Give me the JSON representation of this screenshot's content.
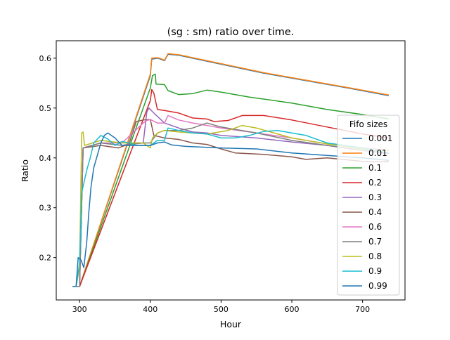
{
  "chart_data": {
    "type": "line",
    "title": "(sg : sm) ratio over time.",
    "xlabel": "Hour",
    "ylabel": "Ratio",
    "xlim": [
      267,
      760
    ],
    "ylim": [
      0.115,
      0.635
    ],
    "xticks": [
      300,
      400,
      500,
      600,
      700
    ],
    "yticks": [
      0.2,
      0.3,
      0.4,
      0.5,
      0.6
    ],
    "xtick_labels": [
      "300",
      "400",
      "500",
      "600",
      "700"
    ],
    "ytick_labels": [
      "0.2",
      "0.3",
      "0.4",
      "0.5",
      "0.6"
    ],
    "grid": false,
    "legend": {
      "title": "Fifo sizes",
      "placement": "center-right"
    },
    "series": [
      {
        "name": "0.001",
        "color": "#1f77b4",
        "points": [
          [
            290,
            0.142
          ],
          [
            300,
            0.142
          ],
          [
            400,
            0.565
          ],
          [
            402,
            0.598
          ],
          [
            410,
            0.6
          ],
          [
            415,
            0.598
          ],
          [
            420,
            0.595
          ],
          [
            425,
            0.608
          ],
          [
            440,
            0.606
          ],
          [
            500,
            0.588
          ],
          [
            560,
            0.57
          ],
          [
            620,
            0.555
          ],
          [
            680,
            0.54
          ],
          [
            737,
            0.525
          ]
        ]
      },
      {
        "name": "0.01",
        "color": "#ff7f0e",
        "points": [
          [
            290,
            0.142
          ],
          [
            300,
            0.142
          ],
          [
            400,
            0.568
          ],
          [
            402,
            0.6
          ],
          [
            410,
            0.601
          ],
          [
            415,
            0.599
          ],
          [
            420,
            0.596
          ],
          [
            425,
            0.609
          ],
          [
            440,
            0.607
          ],
          [
            500,
            0.589
          ],
          [
            560,
            0.571
          ],
          [
            620,
            0.556
          ],
          [
            680,
            0.541
          ],
          [
            737,
            0.526
          ]
        ]
      },
      {
        "name": "0.1",
        "color": "#2ca02c",
        "points": [
          [
            290,
            0.142
          ],
          [
            300,
            0.142
          ],
          [
            400,
            0.54
          ],
          [
            403,
            0.565
          ],
          [
            407,
            0.568
          ],
          [
            408,
            0.548
          ],
          [
            420,
            0.547
          ],
          [
            425,
            0.535
          ],
          [
            440,
            0.527
          ],
          [
            460,
            0.529
          ],
          [
            480,
            0.536
          ],
          [
            500,
            0.532
          ],
          [
            540,
            0.522
          ],
          [
            600,
            0.51
          ],
          [
            650,
            0.497
          ],
          [
            700,
            0.487
          ],
          [
            737,
            0.478
          ]
        ]
      },
      {
        "name": "0.2",
        "color": "#d62728",
        "points": [
          [
            290,
            0.142
          ],
          [
            300,
            0.142
          ],
          [
            400,
            0.515
          ],
          [
            402,
            0.537
          ],
          [
            405,
            0.53
          ],
          [
            410,
            0.497
          ],
          [
            420,
            0.495
          ],
          [
            440,
            0.49
          ],
          [
            460,
            0.48
          ],
          [
            480,
            0.478
          ],
          [
            490,
            0.473
          ],
          [
            510,
            0.475
          ],
          [
            530,
            0.485
          ],
          [
            560,
            0.485
          ],
          [
            600,
            0.476
          ],
          [
            650,
            0.462
          ],
          [
            700,
            0.448
          ],
          [
            737,
            0.44
          ]
        ]
      },
      {
        "name": "0.3",
        "color": "#9467bd",
        "points": [
          [
            290,
            0.142
          ],
          [
            300,
            0.142
          ],
          [
            305,
            0.42
          ],
          [
            330,
            0.43
          ],
          [
            360,
            0.425
          ],
          [
            380,
            0.43
          ],
          [
            390,
            0.43
          ],
          [
            395,
            0.492
          ],
          [
            398,
            0.5
          ],
          [
            405,
            0.49
          ],
          [
            420,
            0.47
          ],
          [
            440,
            0.46
          ],
          [
            460,
            0.452
          ],
          [
            480,
            0.45
          ],
          [
            500,
            0.445
          ],
          [
            550,
            0.44
          ],
          [
            600,
            0.432
          ],
          [
            650,
            0.425
          ],
          [
            700,
            0.415
          ],
          [
            737,
            0.408
          ]
        ]
      },
      {
        "name": "0.4",
        "color": "#8c564b",
        "points": [
          [
            290,
            0.142
          ],
          [
            300,
            0.142
          ],
          [
            305,
            0.42
          ],
          [
            330,
            0.425
          ],
          [
            355,
            0.42
          ],
          [
            370,
            0.428
          ],
          [
            380,
            0.473
          ],
          [
            390,
            0.476
          ],
          [
            400,
            0.477
          ],
          [
            405,
            0.445
          ],
          [
            420,
            0.44
          ],
          [
            440,
            0.437
          ],
          [
            460,
            0.43
          ],
          [
            480,
            0.427
          ],
          [
            500,
            0.418
          ],
          [
            520,
            0.41
          ],
          [
            560,
            0.407
          ],
          [
            600,
            0.402
          ],
          [
            620,
            0.397
          ],
          [
            650,
            0.4
          ],
          [
            700,
            0.393
          ],
          [
            737,
            0.392
          ]
        ]
      },
      {
        "name": "0.6",
        "color": "#e377c2",
        "points": [
          [
            290,
            0.142
          ],
          [
            300,
            0.142
          ],
          [
            305,
            0.42
          ],
          [
            330,
            0.43
          ],
          [
            360,
            0.43
          ],
          [
            390,
            0.47
          ],
          [
            395,
            0.475
          ],
          [
            400,
            0.477
          ],
          [
            410,
            0.47
          ],
          [
            420,
            0.47
          ],
          [
            425,
            0.485
          ],
          [
            440,
            0.476
          ],
          [
            460,
            0.47
          ],
          [
            480,
            0.465
          ],
          [
            500,
            0.46
          ],
          [
            550,
            0.45
          ],
          [
            600,
            0.44
          ],
          [
            650,
            0.428
          ],
          [
            700,
            0.42
          ],
          [
            737,
            0.415
          ]
        ]
      },
      {
        "name": "0.7",
        "color": "#7f7f7f",
        "points": [
          [
            290,
            0.142
          ],
          [
            300,
            0.142
          ],
          [
            305,
            0.42
          ],
          [
            330,
            0.43
          ],
          [
            360,
            0.425
          ],
          [
            390,
            0.43
          ],
          [
            400,
            0.43
          ],
          [
            410,
            0.45
          ],
          [
            420,
            0.455
          ],
          [
            440,
            0.455
          ],
          [
            460,
            0.46
          ],
          [
            480,
            0.47
          ],
          [
            500,
            0.462
          ],
          [
            550,
            0.45
          ],
          [
            600,
            0.435
          ],
          [
            650,
            0.425
          ],
          [
            700,
            0.415
          ],
          [
            737,
            0.41
          ]
        ]
      },
      {
        "name": "0.8",
        "color": "#bcbd22",
        "points": [
          [
            290,
            0.142
          ],
          [
            295,
            0.142
          ],
          [
            300,
            0.18
          ],
          [
            303,
            0.45
          ],
          [
            305,
            0.452
          ],
          [
            307,
            0.425
          ],
          [
            330,
            0.435
          ],
          [
            360,
            0.43
          ],
          [
            390,
            0.43
          ],
          [
            400,
            0.42
          ],
          [
            403,
            0.44
          ],
          [
            410,
            0.45
          ],
          [
            420,
            0.455
          ],
          [
            440,
            0.452
          ],
          [
            480,
            0.448
          ],
          [
            510,
            0.455
          ],
          [
            530,
            0.465
          ],
          [
            550,
            0.46
          ],
          [
            600,
            0.44
          ],
          [
            650,
            0.428
          ],
          [
            700,
            0.418
          ],
          [
            737,
            0.415
          ]
        ]
      },
      {
        "name": "0.9",
        "color": "#17becf",
        "points": [
          [
            290,
            0.142
          ],
          [
            295,
            0.142
          ],
          [
            300,
            0.19
          ],
          [
            303,
            0.33
          ],
          [
            310,
            0.375
          ],
          [
            315,
            0.4
          ],
          [
            320,
            0.43
          ],
          [
            330,
            0.445
          ],
          [
            340,
            0.438
          ],
          [
            350,
            0.425
          ],
          [
            360,
            0.433
          ],
          [
            370,
            0.43
          ],
          [
            380,
            0.425
          ],
          [
            400,
            0.425
          ],
          [
            410,
            0.435
          ],
          [
            420,
            0.435
          ],
          [
            425,
            0.46
          ],
          [
            440,
            0.455
          ],
          [
            460,
            0.45
          ],
          [
            480,
            0.448
          ],
          [
            500,
            0.44
          ],
          [
            520,
            0.44
          ],
          [
            540,
            0.445
          ],
          [
            560,
            0.453
          ],
          [
            580,
            0.455
          ],
          [
            600,
            0.45
          ],
          [
            620,
            0.445
          ],
          [
            650,
            0.43
          ],
          [
            700,
            0.42
          ],
          [
            737,
            0.41
          ]
        ]
      },
      {
        "name": "0.99",
        "color": "#1f77b4",
        "points": [
          [
            290,
            0.142
          ],
          [
            295,
            0.142
          ],
          [
            298,
            0.2
          ],
          [
            302,
            0.195
          ],
          [
            306,
            0.18
          ],
          [
            310,
            0.23
          ],
          [
            313,
            0.29
          ],
          [
            316,
            0.34
          ],
          [
            320,
            0.38
          ],
          [
            325,
            0.405
          ],
          [
            330,
            0.43
          ],
          [
            335,
            0.445
          ],
          [
            340,
            0.45
          ],
          [
            350,
            0.44
          ],
          [
            360,
            0.425
          ],
          [
            380,
            0.425
          ],
          [
            400,
            0.425
          ],
          [
            410,
            0.43
          ],
          [
            420,
            0.432
          ],
          [
            430,
            0.426
          ],
          [
            450,
            0.423
          ],
          [
            500,
            0.42
          ],
          [
            550,
            0.418
          ],
          [
            600,
            0.41
          ],
          [
            650,
            0.405
          ],
          [
            700,
            0.4
          ],
          [
            737,
            0.395
          ]
        ]
      }
    ]
  }
}
